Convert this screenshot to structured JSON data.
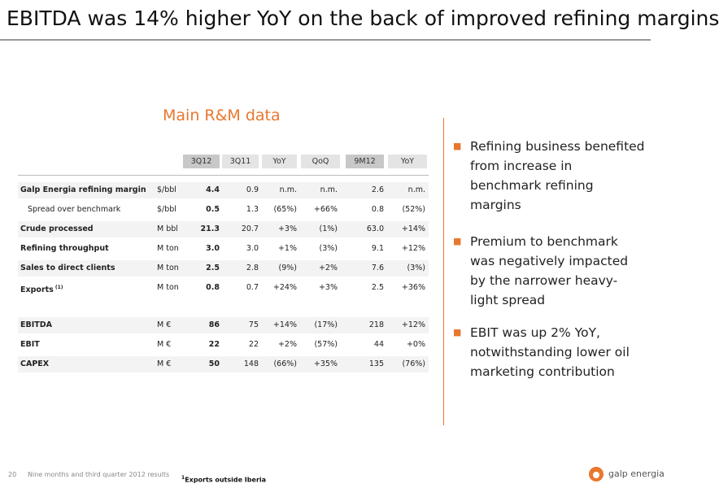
{
  "header": {
    "title": "EBITDA was 14% higher YoY on the back of improved refining margins"
  },
  "table": {
    "title": "Main R&M data",
    "columns": [
      "3Q12",
      "3Q11",
      "YoY",
      "QoQ",
      "9M12",
      "YoY"
    ],
    "rows": [
      [
        "Galp Energia refining margin",
        "$/bbl",
        "4.4",
        "0.9",
        "n.m.",
        "n.m.",
        "2.6",
        "n.m."
      ],
      [
        "Spread over benchmark",
        "$/bbl",
        "0.5",
        "1.3",
        "(65%)",
        "+66%",
        "0.8",
        "(52%)"
      ],
      [
        "Crude processed",
        "M bbl",
        "21.3",
        "20.7",
        "+3%",
        "(1%)",
        "63.0",
        "+14%"
      ],
      [
        "Refining throughput",
        "M ton",
        "3.0",
        "3.0",
        "+1%",
        "(3%)",
        "9.1",
        "+12%"
      ],
      [
        "Sales to direct clients",
        "M ton",
        "2.5",
        "2.8",
        "(9%)",
        "+2%",
        "7.6",
        "(3%)"
      ],
      [
        "Exports",
        "M ton",
        "0.8",
        "0.7",
        "+24%",
        "+3%",
        "2.5",
        "+36%"
      ],
      [
        "EBITDA",
        "M €",
        "86",
        "75",
        "+14%",
        "(17%)",
        "218",
        "+12%"
      ],
      [
        "EBIT",
        "M €",
        "22",
        "22",
        "+2%",
        "(57%)",
        "44",
        "+0%"
      ],
      [
        "CAPEX",
        "M €",
        "50",
        "148",
        "(66%)",
        "+35%",
        "135",
        "(76%)"
      ]
    ],
    "exports_marker": "(1)"
  },
  "bullets": [
    "Refining business benefited from increase in benchmark refining margins",
    "Premium to benchmark was negatively impacted by  the narrower heavy-light spread",
    "EBIT was up 2% YoY, notwithstanding lower oil marketing contribution"
  ],
  "footer": {
    "page": "20",
    "caption": "Nine months and third quarter 2012 results",
    "footnote_marker": "1",
    "footnote": "Exports outside Iberia",
    "logo": "galp energia"
  }
}
